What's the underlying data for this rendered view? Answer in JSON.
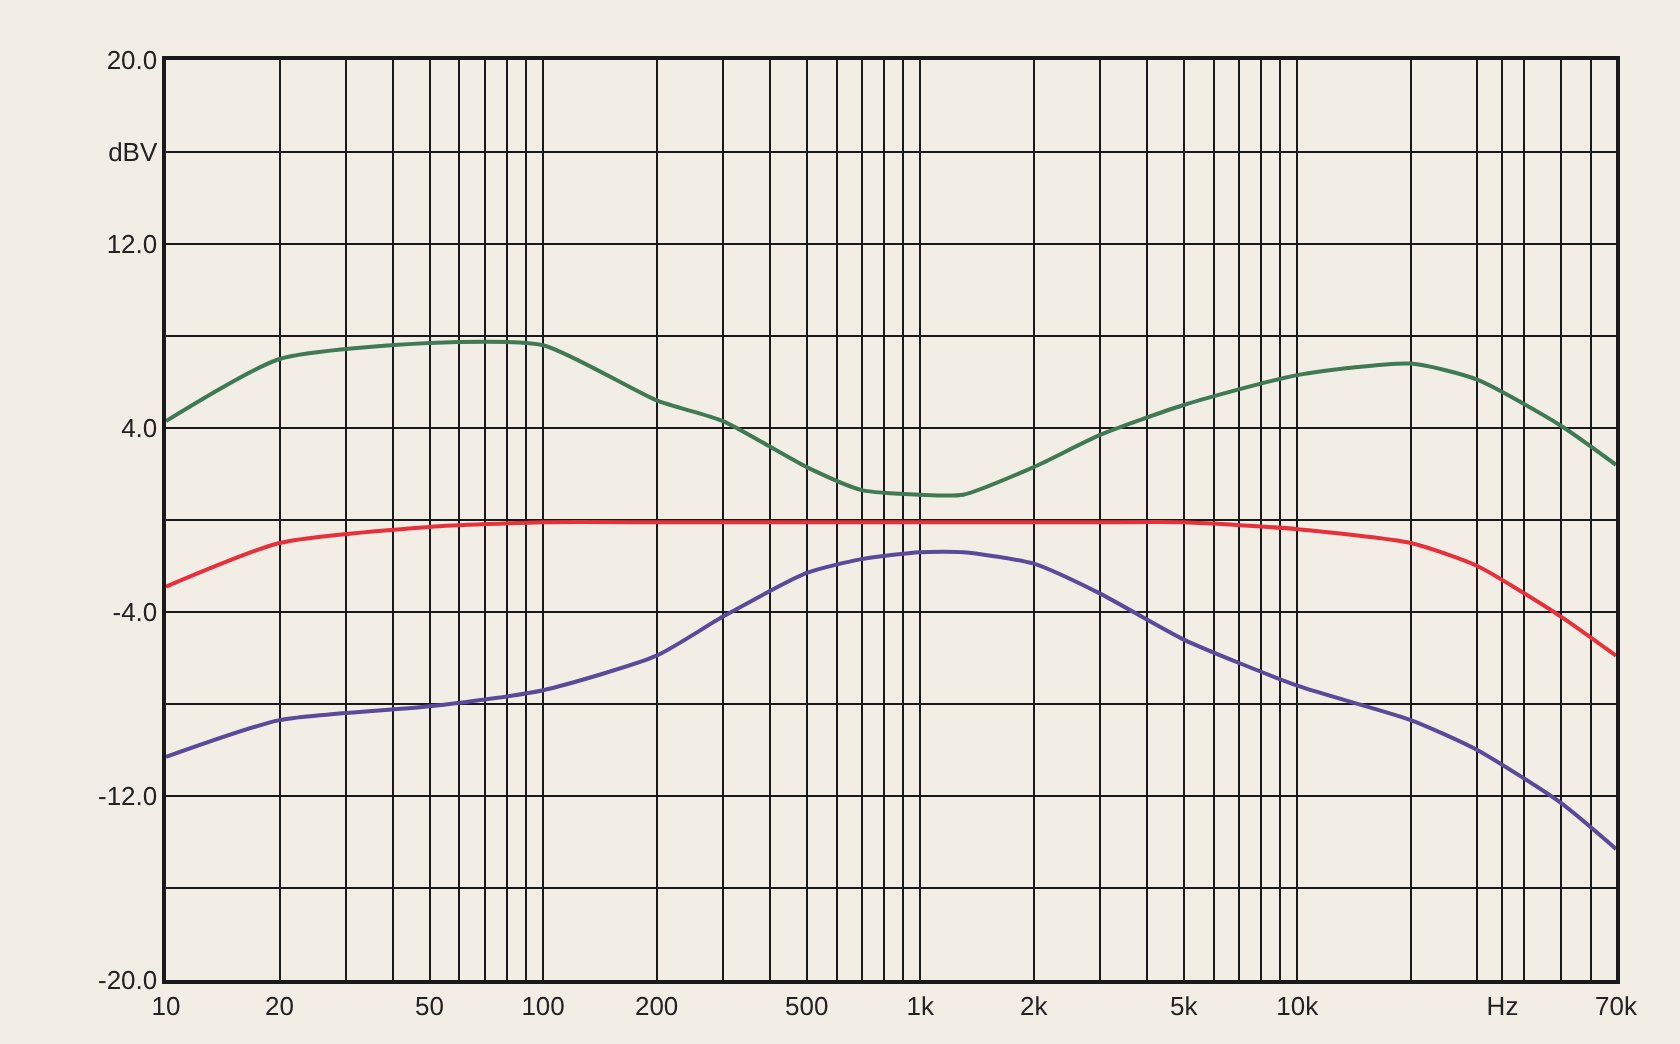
{
  "chart_data": {
    "type": "line",
    "log": "x",
    "grid": true,
    "marker": "none",
    "line_style": "solid",
    "xlim": [
      10,
      70000
    ],
    "xticks": [
      {
        "value": 10,
        "label": "10"
      },
      {
        "value": 20,
        "label": "20"
      },
      {
        "value": 30,
        "label": null
      },
      {
        "value": 40,
        "label": null
      },
      {
        "value": 50,
        "label": "50"
      },
      {
        "value": 60,
        "label": null
      },
      {
        "value": 70,
        "label": null
      },
      {
        "value": 80,
        "label": null
      },
      {
        "value": 90,
        "label": null
      },
      {
        "value": 100,
        "label": "100"
      },
      {
        "value": 200,
        "label": "200"
      },
      {
        "value": 300,
        "label": null
      },
      {
        "value": 400,
        "label": null
      },
      {
        "value": 500,
        "label": "500"
      },
      {
        "value": 600,
        "label": null
      },
      {
        "value": 700,
        "label": null
      },
      {
        "value": 800,
        "label": null
      },
      {
        "value": 900,
        "label": null
      },
      {
        "value": 1000,
        "label": "1k"
      },
      {
        "value": 2000,
        "label": "2k"
      },
      {
        "value": 3000,
        "label": null
      },
      {
        "value": 4000,
        "label": null
      },
      {
        "value": 5000,
        "label": "5k"
      },
      {
        "value": 6000,
        "label": null
      },
      {
        "value": 7000,
        "label": null
      },
      {
        "value": 8000,
        "label": null
      },
      {
        "value": 9000,
        "label": null
      },
      {
        "value": 10000,
        "label": "10k"
      },
      {
        "value": 20000,
        "label": null
      },
      {
        "value": 30000,
        "label": null
      },
      {
        "value": 35000,
        "label": "Hz"
      },
      {
        "value": 40000,
        "label": null
      },
      {
        "value": 50000,
        "label": null
      },
      {
        "value": 60000,
        "label": null
      },
      {
        "value": 70000,
        "label": "70k"
      }
    ],
    "ylim": [
      -20,
      20
    ],
    "yticks": [
      {
        "value": 20,
        "label": "20.0"
      },
      {
        "value": 16,
        "label": "dBV"
      },
      {
        "value": 12,
        "label": "12.0"
      },
      {
        "value": 8,
        "label": null
      },
      {
        "value": 4,
        "label": "4.0"
      },
      {
        "value": 0,
        "label": null
      },
      {
        "value": -4,
        "label": "-4.0"
      },
      {
        "value": -8,
        "label": null
      },
      {
        "value": -12,
        "label": "-12.0"
      },
      {
        "value": -16,
        "label": null
      },
      {
        "value": -20,
        "label": "-20.0"
      }
    ],
    "x": [
      10,
      20,
      50,
      100,
      200,
      300,
      500,
      700,
      1000,
      1300,
      2000,
      3000,
      5000,
      10000,
      20000,
      30000,
      50000,
      70000
    ],
    "series": [
      {
        "color": "#3f7a55",
        "values": [
          4.3,
          7.0,
          7.7,
          7.6,
          5.2,
          4.3,
          2.3,
          1.3,
          1.1,
          1.1,
          2.3,
          3.7,
          5.0,
          6.3,
          6.8,
          6.1,
          4.1,
          2.4
        ]
      },
      {
        "color": "#e8303a",
        "values": [
          -2.9,
          -1.0,
          -0.3,
          -0.1,
          -0.1,
          -0.1,
          -0.1,
          -0.1,
          -0.1,
          -0.1,
          -0.1,
          -0.1,
          -0.1,
          -0.4,
          -1.0,
          -2.0,
          -4.2,
          -5.9
        ]
      },
      {
        "color": "#5a4a9a",
        "values": [
          -10.3,
          -8.7,
          -8.1,
          -7.4,
          -5.9,
          -4.2,
          -2.3,
          -1.7,
          -1.4,
          -1.4,
          -1.9,
          -3.2,
          -5.2,
          -7.2,
          -8.7,
          -10.0,
          -12.3,
          -14.3
        ]
      }
    ]
  }
}
